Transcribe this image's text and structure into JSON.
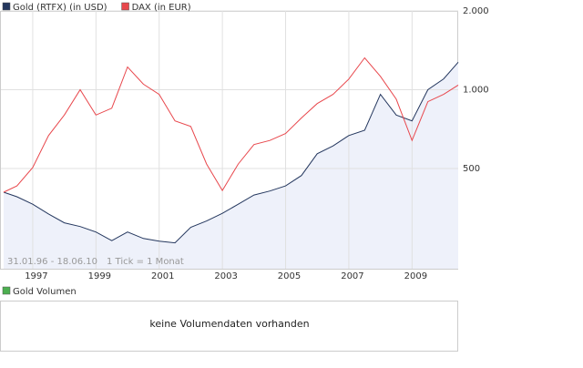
{
  "chart_data": {
    "type": "line",
    "x": [
      1996.08,
      1996.5,
      1997,
      1997.5,
      1998,
      1998.5,
      1999,
      1999.5,
      2000,
      2000.5,
      2001,
      2001.5,
      2002,
      2002.5,
      2003,
      2003.5,
      2004,
      2004.5,
      2005,
      2005.5,
      2006,
      2006.5,
      2007,
      2007.5,
      2008,
      2008.5,
      2009,
      2009.5,
      2010,
      2010.46
    ],
    "series": [
      {
        "name": "Gold (RTFX) (in USD)",
        "color": "#24375e",
        "values": [
          406,
          390,
          365,
          335,
          310,
          300,
          286,
          265,
          286,
          270,
          264,
          260,
          298,
          315,
          337,
          365,
          396,
          410,
          429,
          470,
          569,
          610,
          668,
          700,
          960,
          800,
          760,
          1000,
          1100,
          1274
        ]
      },
      {
        "name": "DAX (in EUR)",
        "color": "#e8474c",
        "values": [
          406,
          429,
          504,
          668,
          800,
          1000,
          800,
          850,
          1222,
          1050,
          960,
          760,
          724,
          520,
          412,
          520,
          617,
          640,
          680,
          780,
          885,
          960,
          1098,
          1324,
          1125,
          920,
          640,
          900,
          960,
          1042
        ]
      }
    ],
    "xlim": [
      1996.08,
      2010.46
    ],
    "xticks": [
      1997,
      1999,
      2001,
      2003,
      2005,
      2007,
      2009
    ],
    "ylim": [
      207,
      2000
    ],
    "yticks": [
      {
        "value": 2000,
        "label": "2.000"
      },
      {
        "value": 1000,
        "label": "1.000"
      },
      500
    ],
    "log_scale": true,
    "grid": true,
    "area_fill": "#eef1fa",
    "period": "31.01.96 - 18.06.10",
    "tick_note": "1 Tick = 1 Monat",
    "volume": {
      "name": "Gold Volumen",
      "color": "#4caf50",
      "message": "keine Volumendaten vorhanden"
    }
  }
}
